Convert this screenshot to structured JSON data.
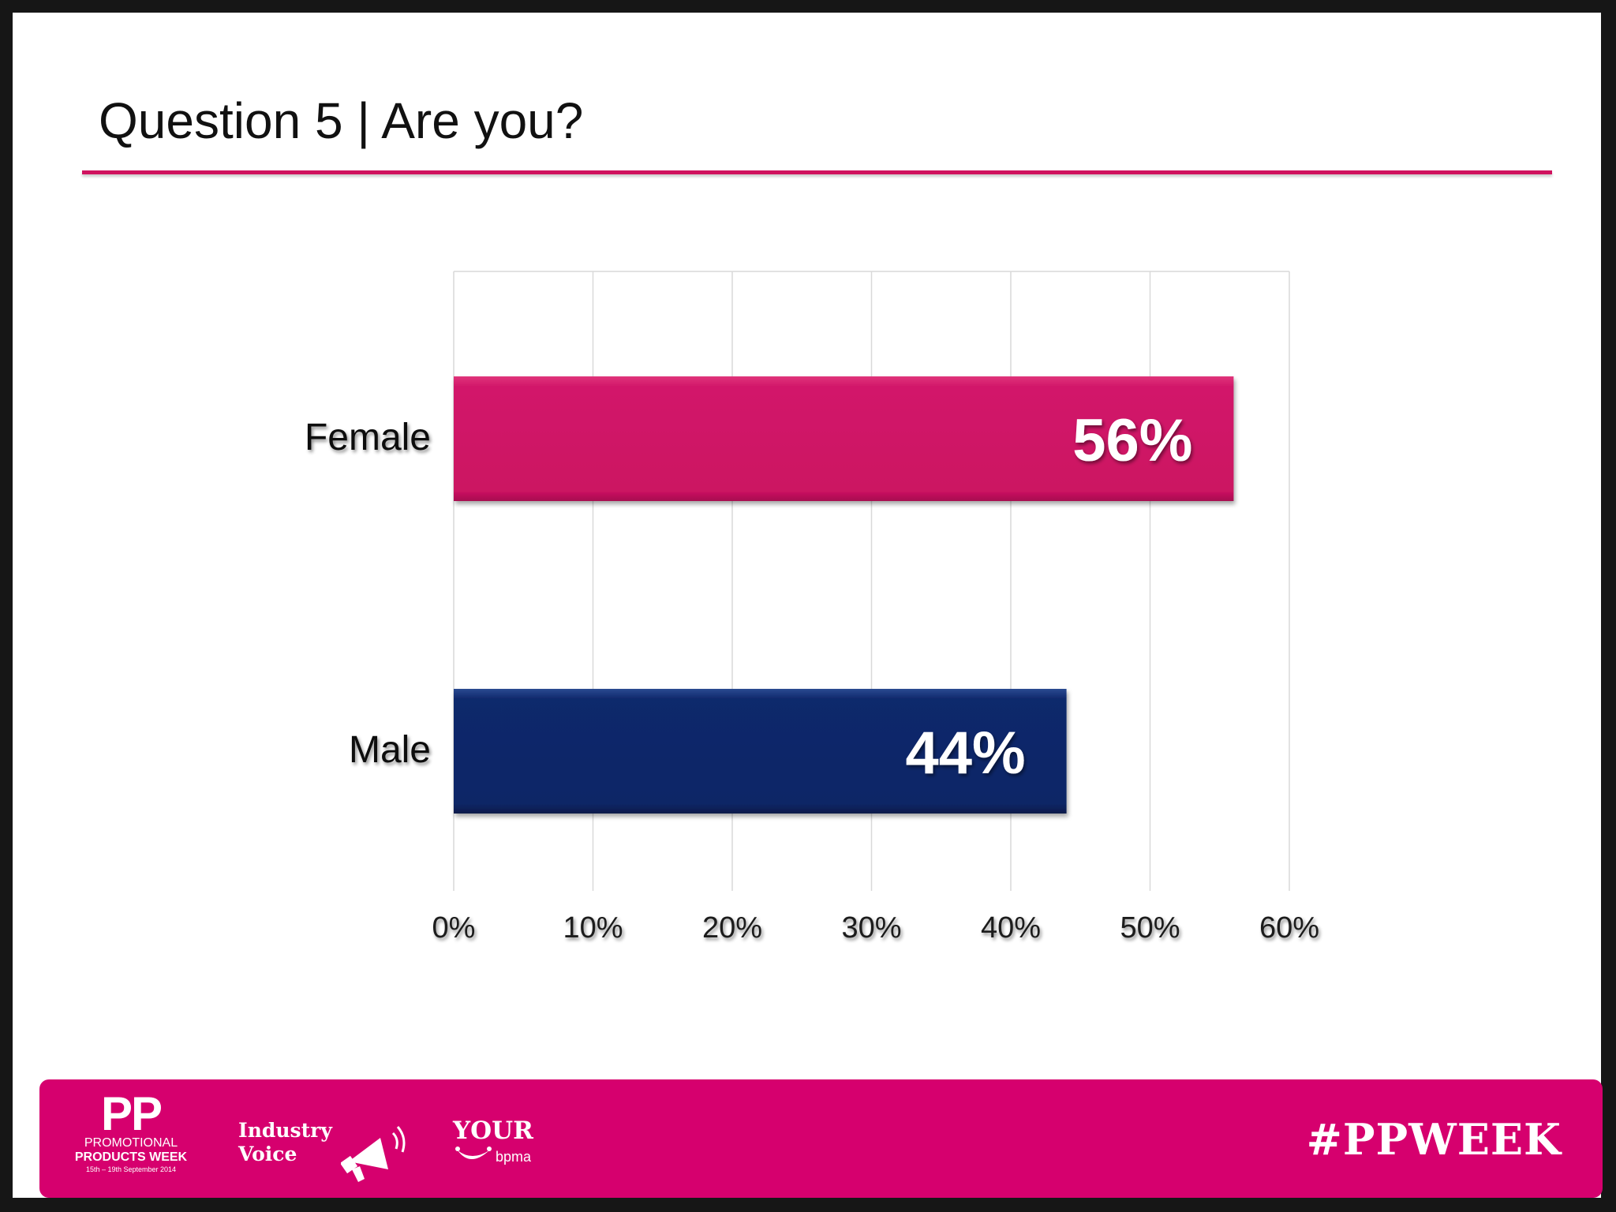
{
  "slide": {
    "title": "Question 5 | Are you?"
  },
  "colors": {
    "accent": "#d0135f",
    "female_bar": "#d0135f",
    "male_bar": "#0d2868",
    "footer": "#d6006e"
  },
  "chart_data": {
    "type": "bar",
    "orientation": "horizontal",
    "categories": [
      "Female",
      "Male"
    ],
    "values": [
      56,
      44
    ],
    "value_labels": [
      "56%",
      "44%"
    ],
    "xlim": [
      0,
      60
    ],
    "x_ticks": [
      "0%",
      "10%",
      "20%",
      "30%",
      "40%",
      "50%",
      "60%"
    ],
    "grid": true,
    "title": "",
    "xlabel": "",
    "ylabel": ""
  },
  "footer": {
    "pp_logo": {
      "big": "PP",
      "line1": "PROMOTIONAL",
      "line2": "PRODUCTS WEEK",
      "dates": "15th – 19th September 2014"
    },
    "industry_voice": {
      "line1": "Industry",
      "line2": "Voice",
      "icon": "megaphone-icon"
    },
    "bpma_logo": {
      "your": "YOUR",
      "name": "bpma"
    },
    "hashtag": "#PPWEEK"
  }
}
